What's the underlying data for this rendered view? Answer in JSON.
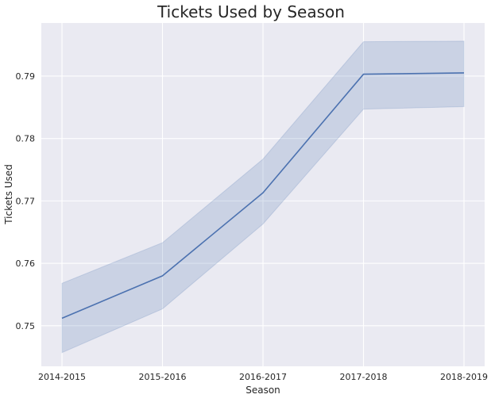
{
  "chart_data": {
    "type": "line",
    "title": "Tickets Used by Season",
    "xlabel": "Season",
    "ylabel": "Tickets Used",
    "categories": [
      "2014-2015",
      "2015-2016",
      "2016-2017",
      "2017-2018",
      "2018-2019"
    ],
    "series": [
      {
        "values": [
          0.7512,
          0.758,
          0.7713,
          0.7903,
          0.7905
        ],
        "ci_low": [
          0.7457,
          0.7527,
          0.7663,
          0.7847,
          0.7851
        ],
        "ci_high": [
          0.7568,
          0.7633,
          0.7767,
          0.7955,
          0.7956
        ],
        "color": "#4c72b0",
        "band_color": "#4c72b0"
      }
    ],
    "ylim": [
      0.7435,
      0.7985
    ],
    "yticks": [
      0.75,
      0.76,
      0.77,
      0.78,
      0.79
    ],
    "ytick_labels": [
      "0.75",
      "0.76",
      "0.77",
      "0.78",
      "0.79"
    ],
    "grid": true,
    "legend": "none",
    "background_color": "#eaeaf2",
    "grid_color": "#ffffff"
  }
}
